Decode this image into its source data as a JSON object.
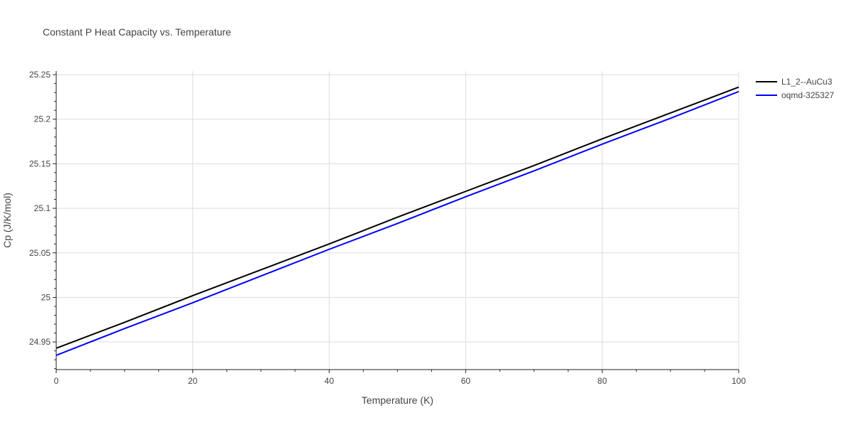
{
  "chart_data": {
    "type": "line",
    "title": "Constant P Heat Capacity vs. Temperature",
    "xlabel": "Temperature (K)",
    "ylabel": "Cp (J/K/mol)",
    "xlim": [
      0,
      100
    ],
    "ylim": [
      24.919,
      25.254
    ],
    "x_ticks": [
      0,
      20,
      40,
      60,
      80,
      100
    ],
    "x_tick_labels": [
      "0",
      "20",
      "40",
      "60",
      "80",
      "100"
    ],
    "y_ticks": [
      24.95,
      25.0,
      25.05,
      25.1,
      25.15,
      25.2,
      25.25
    ],
    "y_tick_labels": [
      "24.95",
      "25",
      "25.05",
      "25.1",
      "25.15",
      "25.2",
      "25.25"
    ],
    "grid": true,
    "legend_position": "top-right",
    "series": [
      {
        "name": "L1_2--AuCu3",
        "color": "#000000",
        "x": [
          0,
          10,
          20,
          30,
          40,
          50,
          60,
          70,
          80,
          90,
          100
        ],
        "y": [
          24.943,
          24.972,
          25.002,
          25.031,
          25.06,
          25.09,
          25.119,
          25.148,
          25.178,
          25.207,
          25.236
        ]
      },
      {
        "name": "oqmd-325327",
        "color": "#0000ff",
        "x": [
          0,
          10,
          20,
          30,
          40,
          50,
          60,
          70,
          80,
          90,
          100
        ],
        "y": [
          24.935,
          24.965,
          24.994,
          25.024,
          25.054,
          25.083,
          25.113,
          25.142,
          25.172,
          25.201,
          25.231
        ]
      }
    ]
  }
}
